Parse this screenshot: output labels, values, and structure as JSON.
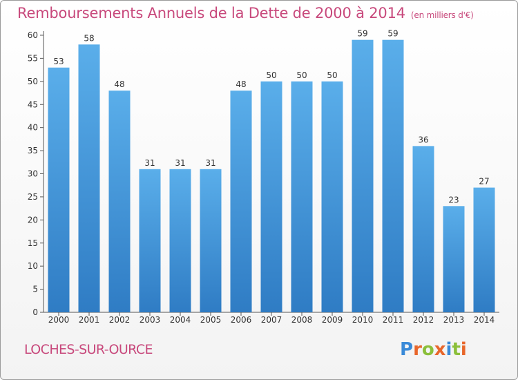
{
  "chart_data": {
    "type": "bar",
    "title": "Remboursements Annuels de la Dette de 2000 à 2014",
    "subtitle": "(en milliers d'€)",
    "categories": [
      "2000",
      "2001",
      "2002",
      "2003",
      "2004",
      "2005",
      "2006",
      "2007",
      "2008",
      "2009",
      "2010",
      "2011",
      "2012",
      "2013",
      "2014"
    ],
    "values": [
      53,
      58,
      48,
      31,
      31,
      31,
      48,
      50,
      50,
      50,
      59,
      59,
      36,
      23,
      27
    ],
    "ylim": [
      0,
      60
    ],
    "yticks": [
      0,
      5,
      10,
      15,
      20,
      25,
      30,
      35,
      40,
      45,
      50,
      55,
      60
    ],
    "grid": false,
    "bar_color": "#4b9fe0"
  },
  "footer": {
    "town": "LOCHES-SUR-OURCE",
    "brand_letters": [
      {
        "ch": "P",
        "color": "#3a8ad8"
      },
      {
        "ch": "r",
        "color": "#e8662a"
      },
      {
        "ch": "o",
        "color": "#8bbf3a"
      },
      {
        "ch": "x",
        "color": "#e8662a"
      },
      {
        "ch": "i",
        "color": "#3a8ad8"
      },
      {
        "ch": "t",
        "color": "#8bbf3a"
      },
      {
        "ch": "i",
        "color": "#e8662a"
      }
    ]
  }
}
